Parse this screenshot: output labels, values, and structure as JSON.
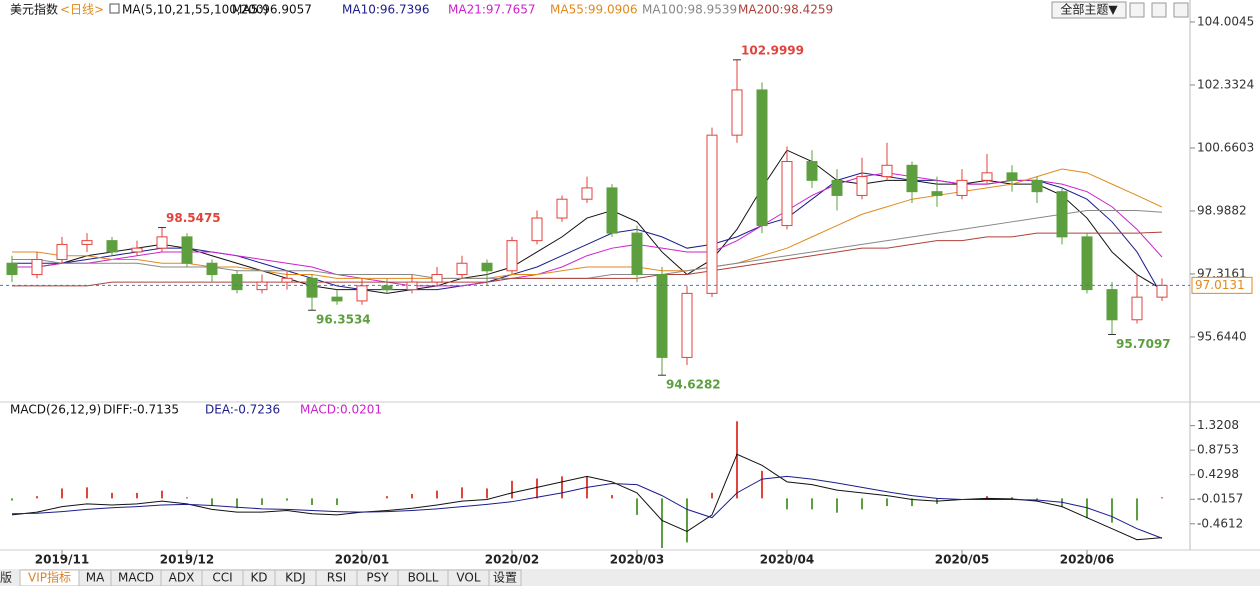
{
  "chart_data": [
    {
      "type": "candlestick",
      "title": "美元指数",
      "period": "<日线>",
      "indicator": "MA(5,10,21,55,100,200)",
      "categories": [
        null,
        null,
        "2019/11",
        null,
        null,
        null,
        null,
        "2019/12",
        null,
        null,
        null,
        null,
        null,
        null,
        "2020/01",
        null,
        null,
        null,
        null,
        null,
        "2020/02",
        null,
        null,
        null,
        null,
        "2020/03",
        null,
        null,
        null,
        null,
        null,
        "2020/04",
        null,
        null,
        null,
        null,
        null,
        null,
        "2020/05",
        null,
        null,
        null,
        null,
        "2020/06",
        null,
        null,
        null
      ],
      "open": [
        97.6,
        97.3,
        97.7,
        98.1,
        98.2,
        97.9,
        98.0,
        98.3,
        97.6,
        97.3,
        96.9,
        97.1,
        97.2,
        96.7,
        96.6,
        97.0,
        96.9,
        97.1,
        97.3,
        97.6,
        97.4,
        98.2,
        98.8,
        99.3,
        99.6,
        98.4,
        97.3,
        95.1,
        96.8,
        101.0,
        102.2,
        98.6,
        100.3,
        99.8,
        99.4,
        99.9,
        100.2,
        99.5,
        99.4,
        99.8,
        100.0,
        99.8,
        99.5,
        98.3,
        96.9,
        96.1,
        96.7
      ],
      "high": [
        97.8,
        97.9,
        98.3,
        98.4,
        98.3,
        98.2,
        98.5475,
        98.4,
        97.7,
        97.4,
        97.3,
        97.4,
        97.3,
        96.9,
        97.2,
        97.2,
        97.3,
        97.5,
        97.8,
        97.7,
        98.3,
        99.0,
        99.4,
        99.9,
        99.7,
        98.6,
        97.5,
        97.0,
        101.2,
        102.9999,
        102.4,
        100.7,
        100.6,
        100.1,
        100.4,
        100.8,
        100.3,
        99.9,
        100.1,
        100.5,
        100.2,
        99.9,
        99.6,
        98.4,
        97.1,
        97.3,
        97.2
      ],
      "low": [
        97.1,
        97.2,
        97.6,
        97.9,
        97.8,
        97.8,
        97.9,
        97.5,
        97.1,
        96.8,
        96.8,
        96.9,
        96.3534,
        96.5,
        96.5,
        96.8,
        96.8,
        97.0,
        97.2,
        97.0,
        97.3,
        98.1,
        98.7,
        99.2,
        98.3,
        97.1,
        94.6282,
        94.9,
        96.7,
        100.8,
        98.4,
        98.5,
        99.6,
        99.0,
        99.3,
        99.8,
        99.2,
        99.1,
        99.3,
        99.7,
        99.5,
        99.2,
        98.1,
        96.8,
        95.7097,
        96.0,
        96.6
      ],
      "close": [
        97.3,
        97.7,
        98.1,
        98.2,
        97.9,
        98.0,
        98.3,
        97.6,
        97.3,
        96.9,
        97.1,
        97.2,
        96.7,
        96.6,
        97.0,
        96.9,
        97.1,
        97.3,
        97.6,
        97.4,
        98.2,
        98.8,
        99.3,
        99.6,
        98.4,
        97.3,
        95.1,
        96.8,
        101.0,
        102.2,
        98.6,
        100.3,
        99.8,
        99.4,
        99.9,
        100.2,
        99.5,
        99.4,
        99.8,
        100.0,
        99.8,
        99.5,
        98.3,
        96.9,
        96.1,
        96.7,
        97.0131
      ],
      "up_color": "#e2433b",
      "down_color": "#5d9f3e",
      "series": [
        {
          "name": "MA5:96.9057",
          "color": "#111111",
          "values": [
            97.5,
            97.5,
            97.6,
            97.8,
            97.9,
            98.0,
            98.1,
            98.0,
            97.8,
            97.6,
            97.4,
            97.2,
            97.0,
            96.9,
            96.9,
            96.8,
            96.9,
            97.0,
            97.2,
            97.3,
            97.5,
            97.9,
            98.3,
            98.8,
            99.0,
            98.7,
            97.9,
            97.3,
            97.7,
            98.5,
            99.6,
            100.6,
            100.3,
            99.8,
            99.7,
            99.8,
            99.8,
            99.7,
            99.7,
            99.8,
            99.7,
            99.7,
            99.4,
            98.8,
            97.9,
            97.3,
            96.9057
          ]
        },
        {
          "name": "MA10:96.7396",
          "color": "#1c1c8e",
          "values": [
            97.6,
            97.6,
            97.6,
            97.7,
            97.8,
            97.9,
            98.0,
            98.0,
            97.9,
            97.8,
            97.6,
            97.4,
            97.2,
            97.0,
            96.9,
            96.9,
            96.9,
            96.9,
            97.0,
            97.1,
            97.3,
            97.5,
            97.8,
            98.1,
            98.4,
            98.5,
            98.3,
            98.0,
            98.1,
            98.3,
            98.6,
            98.8,
            99.3,
            99.8,
            100.0,
            99.9,
            99.8,
            99.8,
            99.7,
            99.7,
            99.8,
            99.8,
            99.6,
            99.3,
            98.7,
            97.9,
            96.7396
          ]
        },
        {
          "name": "MA21:97.7657",
          "color": "#cc22cc",
          "values": [
            97.5,
            97.5,
            97.6,
            97.6,
            97.7,
            97.8,
            97.9,
            97.9,
            97.9,
            97.8,
            97.7,
            97.6,
            97.5,
            97.3,
            97.2,
            97.1,
            97.0,
            97.0,
            97.0,
            97.1,
            97.2,
            97.3,
            97.5,
            97.8,
            98.0,
            98.1,
            98.0,
            97.9,
            97.9,
            98.2,
            98.6,
            99.0,
            99.4,
            99.7,
            99.9,
            100.0,
            99.9,
            99.8,
            99.7,
            99.7,
            99.8,
            99.8,
            99.7,
            99.5,
            99.1,
            98.5,
            97.7657
          ]
        },
        {
          "name": "MA55:99.0906",
          "color": "#e08a1e",
          "values": [
            97.9,
            97.9,
            97.8,
            97.8,
            97.7,
            97.7,
            97.6,
            97.6,
            97.5,
            97.5,
            97.4,
            97.3,
            97.3,
            97.2,
            97.2,
            97.2,
            97.2,
            97.2,
            97.2,
            97.2,
            97.3,
            97.3,
            97.4,
            97.5,
            97.5,
            97.5,
            97.4,
            97.4,
            97.5,
            97.6,
            97.8,
            98.0,
            98.3,
            98.6,
            98.9,
            99.1,
            99.3,
            99.4,
            99.5,
            99.6,
            99.7,
            99.9,
            100.1,
            100.0,
            99.7,
            99.4,
            99.0906
          ]
        },
        {
          "name": "MA100:98.9539",
          "color": "#888888",
          "values": [
            97.7,
            97.7,
            97.6,
            97.6,
            97.6,
            97.6,
            97.5,
            97.5,
            97.5,
            97.4,
            97.4,
            97.4,
            97.4,
            97.3,
            97.3,
            97.3,
            97.3,
            97.2,
            97.2,
            97.2,
            97.2,
            97.2,
            97.2,
            97.2,
            97.3,
            97.3,
            97.3,
            97.4,
            97.5,
            97.6,
            97.7,
            97.8,
            97.9,
            98.0,
            98.1,
            98.2,
            98.3,
            98.4,
            98.5,
            98.6,
            98.7,
            98.8,
            98.9,
            99.0,
            99.0,
            99.0,
            98.9539
          ]
        },
        {
          "name": "MA200:98.4259",
          "color": "#b0413a",
          "values": [
            97.0,
            97.0,
            97.0,
            97.0,
            97.1,
            97.1,
            97.1,
            97.1,
            97.1,
            97.1,
            97.1,
            97.1,
            97.1,
            97.1,
            97.1,
            97.1,
            97.1,
            97.1,
            97.1,
            97.1,
            97.2,
            97.2,
            97.2,
            97.2,
            97.2,
            97.2,
            97.3,
            97.3,
            97.4,
            97.5,
            97.6,
            97.7,
            97.8,
            97.9,
            98.0,
            98.0,
            98.1,
            98.2,
            98.2,
            98.3,
            98.3,
            98.4,
            98.4,
            98.4,
            98.4,
            98.4,
            98.4259
          ]
        }
      ],
      "ylim": [
        93.97,
        104.11
      ],
      "yticks": [
        104.0045,
        102.3324,
        100.6603,
        98.9882,
        97.3161,
        {
          "value": 95.644,
          "label": "95.6440"
        }
      ],
      "extremes": [
        98.5475,
        96.3534,
        94.6282,
        102.9999,
        95.7097
      ],
      "last_price": 97.0131,
      "last_price_color": "#e08a1e"
    },
    {
      "type": "macd",
      "title": "MACD(26,12,9)",
      "series": [
        {
          "name": "DIFF:-0.7135",
          "color": "#111111",
          "values": [
            -0.3,
            -0.25,
            -0.15,
            -0.1,
            -0.12,
            -0.1,
            -0.05,
            -0.1,
            -0.2,
            -0.25,
            -0.25,
            -0.22,
            -0.28,
            -0.3,
            -0.25,
            -0.22,
            -0.18,
            -0.12,
            -0.05,
            -0.02,
            0.1,
            0.2,
            0.3,
            0.4,
            0.3,
            0.1,
            -0.4,
            -0.6,
            -0.3,
            0.8,
            0.6,
            0.3,
            0.25,
            0.15,
            0.1,
            0.05,
            -0.02,
            -0.05,
            -0.02,
            0.0,
            -0.01,
            -0.05,
            -0.15,
            -0.35,
            -0.55,
            -0.75,
            -0.7135
          ]
        },
        {
          "name": "DEA:-0.7236",
          "color": "#1c1c8e",
          "values": [
            -0.28,
            -0.27,
            -0.24,
            -0.2,
            -0.17,
            -0.15,
            -0.12,
            -0.11,
            -0.13,
            -0.16,
            -0.19,
            -0.2,
            -0.22,
            -0.24,
            -0.25,
            -0.24,
            -0.22,
            -0.19,
            -0.15,
            -0.11,
            -0.06,
            0.02,
            0.1,
            0.2,
            0.27,
            0.25,
            0.05,
            -0.2,
            -0.35,
            0.1,
            0.35,
            0.4,
            0.35,
            0.28,
            0.2,
            0.12,
            0.05,
            0.0,
            -0.02,
            -0.02,
            -0.02,
            -0.03,
            -0.07,
            -0.17,
            -0.33,
            -0.55,
            -0.7236
          ]
        }
      ],
      "histogram": {
        "name": "MACD:0.0201",
        "color": "#cc22cc",
        "values": [
          -0.04,
          0.04,
          0.18,
          0.2,
          0.1,
          0.1,
          0.14,
          0.02,
          -0.14,
          -0.18,
          -0.12,
          -0.04,
          -0.12,
          -0.12,
          0.0,
          0.04,
          0.08,
          0.14,
          0.2,
          0.18,
          0.32,
          0.36,
          0.4,
          0.4,
          0.06,
          -0.3,
          -0.9,
          -0.8,
          0.1,
          1.4,
          0.5,
          -0.2,
          -0.2,
          -0.26,
          -0.2,
          -0.14,
          -0.14,
          -0.1,
          0.0,
          0.04,
          0.02,
          -0.04,
          -0.16,
          -0.36,
          -0.44,
          -0.4,
          0.0201
        ]
      },
      "ylim": [
        -0.901,
        1.532
      ],
      "yticks": [
        1.3208,
        0.8753,
        0.4298,
        -0.0157,
        -0.4612
      ]
    }
  ],
  "toolbar": {
    "theme_button": "全部主题▼",
    "edge": "版",
    "tabs": [
      "VIP指标",
      "MA",
      "MACD",
      "ADX",
      "CCI",
      "KD",
      "KDJ",
      "RSI",
      "PSY",
      "BOLL",
      "VOL",
      "设置"
    ]
  }
}
